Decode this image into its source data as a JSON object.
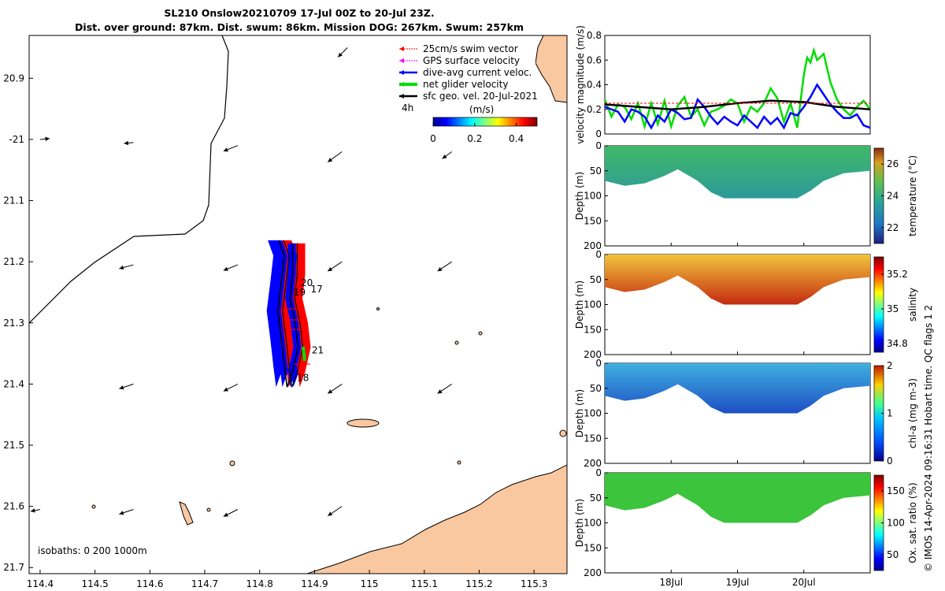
{
  "title_line1": "SL210 Onslow20210709 17-Jul 00Z to 20-Jul 23Z.",
  "title_line2": "Dist. over ground: 87km. Dist. swum: 86km. Mission DOG: 267km. Swum: 257km",
  "side_note": "© IMOS 14-Apr-2024 09:16:31 Hobart time. QC flags 1  2",
  "colors": {
    "land": "#fac8a0",
    "swim_vector": "#ff0000",
    "gps_velocity": "#ff00ff",
    "dive_avg": "#0000ff",
    "net_glider": "#00dd00",
    "geostrophic": "#000000",
    "velocity_swim_line": "#ff0000"
  },
  "chart_data": [
    {
      "type": "map",
      "name": "glider-track-map",
      "xlim": [
        114.38,
        115.36
      ],
      "ylim": [
        -21.71,
        -20.83
      ],
      "x_ticks": [
        114.4,
        114.5,
        114.6,
        114.7,
        114.8,
        114.9,
        115,
        115.1,
        115.2,
        115.3
      ],
      "x_tick_labels": [
        "114.4",
        "114.5",
        "114.6",
        "114.7",
        "114.8",
        "114.9",
        "115",
        "115.1",
        "115.2",
        "115.3"
      ],
      "y_ticks": [
        -20.9,
        -21,
        -21.1,
        -21.2,
        -21.3,
        -21.4,
        -21.5,
        -21.6,
        -21.7
      ],
      "y_tick_labels": [
        "20.9",
        "-21",
        "21.1",
        "21.2",
        "21.3",
        "21.4",
        "21.5",
        "21.6",
        "21.7"
      ],
      "legend": [
        {
          "label": "25cm/s swim vector",
          "color": "#ff0000"
        },
        {
          "label": "GPS surface velocity",
          "color": "#ff00ff"
        },
        {
          "label": "dive-avg current veloc.",
          "color": "#0000ff"
        },
        {
          "label": "net glider velocity",
          "color": "#00dd00"
        },
        {
          "label": "sfc geo. vel. 20-Jul-2021",
          "color": "#000000"
        }
      ],
      "legend_note": "4h",
      "colorbar": {
        "label": "(m/s)",
        "range": [
          0,
          0.5
        ],
        "ticks": [
          "0",
          "0.2",
          "0.4"
        ]
      },
      "isobaths_label": "isobaths: 0   200  1000m",
      "day_labels": [
        {
          "text": "20",
          "lon": 114.875,
          "lat": -21.24
        },
        {
          "text": "17",
          "lon": 114.893,
          "lat": -21.25
        },
        {
          "text": "19",
          "lon": 114.862,
          "lat": -21.255
        },
        {
          "text": "21",
          "lon": 114.895,
          "lat": -21.35
        },
        {
          "text": "18",
          "lon": 114.868,
          "lat": -21.395
        }
      ],
      "track": [
        {
          "lon": 114.835,
          "lat": -21.165
        },
        {
          "lon": 114.845,
          "lat": -21.19
        },
        {
          "lon": 114.84,
          "lat": -21.23
        },
        {
          "lon": 114.833,
          "lat": -21.28
        },
        {
          "lon": 114.84,
          "lat": -21.33
        },
        {
          "lon": 114.845,
          "lat": -21.37
        },
        {
          "lon": 114.85,
          "lat": -21.405
        },
        {
          "lon": 114.86,
          "lat": -21.38
        },
        {
          "lon": 114.87,
          "lat": -21.34
        },
        {
          "lon": 114.865,
          "lat": -21.3
        },
        {
          "lon": 114.855,
          "lat": -21.26
        },
        {
          "lon": 114.86,
          "lat": -21.22
        },
        {
          "lon": 114.86,
          "lat": -21.17
        }
      ],
      "geostrophic_vectors": [
        {
          "lon": 114.4,
          "lat": -21.0,
          "u": 0.02,
          "v": -0.002
        },
        {
          "lon": 114.57,
          "lat": -21.005,
          "u": -0.02,
          "v": 0.002
        },
        {
          "lon": 114.76,
          "lat": -21.01,
          "u": -0.03,
          "v": 0.012
        },
        {
          "lon": 114.95,
          "lat": -21.02,
          "u": -0.03,
          "v": 0.022
        },
        {
          "lon": 115.15,
          "lat": -21.02,
          "u": -0.02,
          "v": 0.015
        },
        {
          "lon": 114.78,
          "lat": -20.82,
          "u": -0.02,
          "v": 0.008
        },
        {
          "lon": 114.96,
          "lat": -20.85,
          "u": -0.02,
          "v": 0.02
        },
        {
          "lon": 115.15,
          "lat": -20.85,
          "u": -0.03,
          "v": 0.02
        },
        {
          "lon": 114.57,
          "lat": -21.205,
          "u": -0.03,
          "v": 0.008
        },
        {
          "lon": 114.76,
          "lat": -21.205,
          "u": -0.03,
          "v": 0.012
        },
        {
          "lon": 114.95,
          "lat": -21.2,
          "u": -0.03,
          "v": 0.02
        },
        {
          "lon": 115.15,
          "lat": -21.2,
          "u": -0.03,
          "v": 0.02
        },
        {
          "lon": 114.57,
          "lat": -21.4,
          "u": -0.03,
          "v": 0.01
        },
        {
          "lon": 114.76,
          "lat": -21.4,
          "u": -0.03,
          "v": 0.015
        },
        {
          "lon": 114.95,
          "lat": -21.4,
          "u": -0.03,
          "v": 0.02
        },
        {
          "lon": 115.15,
          "lat": -21.4,
          "u": -0.03,
          "v": 0.02
        },
        {
          "lon": 114.4,
          "lat": -21.605,
          "u": -0.02,
          "v": 0.004
        },
        {
          "lon": 114.57,
          "lat": -21.605,
          "u": -0.03,
          "v": 0.01
        },
        {
          "lon": 114.76,
          "lat": -21.605,
          "u": -0.03,
          "v": 0.015
        },
        {
          "lon": 114.95,
          "lat": -21.6,
          "u": -0.03,
          "v": 0.02
        }
      ]
    },
    {
      "type": "line",
      "name": "velocity-magnitude",
      "ylabel": "velocity magnitude (m/s)",
      "xlim": [
        17.0,
        21.0
      ],
      "ylim": [
        0,
        0.8
      ],
      "y_ticks": [
        0,
        0.2,
        0.4,
        0.6,
        0.8
      ],
      "series": [
        {
          "color": "#00dd00",
          "x": [
            17.0,
            17.1,
            17.2,
            17.3,
            17.4,
            17.5,
            17.6,
            17.7,
            17.8,
            17.9,
            18.0,
            18.1,
            18.2,
            18.3,
            18.4,
            18.5,
            18.6,
            18.7,
            18.8,
            18.9,
            19.0,
            19.1,
            19.2,
            19.3,
            19.4,
            19.5,
            19.6,
            19.7,
            19.8,
            19.9,
            20.0,
            20.05,
            20.1,
            20.15,
            20.2,
            20.3,
            20.4,
            20.5,
            20.6,
            20.7,
            20.8,
            20.9,
            21.0
          ],
          "y": [
            0.28,
            0.14,
            0.24,
            0.22,
            0.12,
            0.25,
            0.06,
            0.25,
            0.08,
            0.27,
            0.06,
            0.23,
            0.3,
            0.14,
            0.2,
            0.07,
            0.18,
            0.2,
            0.23,
            0.28,
            0.25,
            0.1,
            0.22,
            0.18,
            0.25,
            0.37,
            0.29,
            0.1,
            0.25,
            0.05,
            0.48,
            0.62,
            0.58,
            0.68,
            0.6,
            0.65,
            0.42,
            0.28,
            0.2,
            0.15,
            0.22,
            0.27,
            0.2
          ]
        },
        {
          "color": "#0000ff",
          "x": [
            17.0,
            17.1,
            17.2,
            17.3,
            17.4,
            17.5,
            17.6,
            17.7,
            17.8,
            17.9,
            18.0,
            18.1,
            18.2,
            18.3,
            18.4,
            18.5,
            18.6,
            18.7,
            18.8,
            18.9,
            19.0,
            19.1,
            19.2,
            19.3,
            19.4,
            19.5,
            19.6,
            19.7,
            19.8,
            19.9,
            20.0,
            20.1,
            20.2,
            20.3,
            20.4,
            20.5,
            20.6,
            20.7,
            20.8,
            20.9,
            21.0
          ],
          "y": [
            0.22,
            0.2,
            0.18,
            0.1,
            0.2,
            0.18,
            0.14,
            0.05,
            0.15,
            0.1,
            0.2,
            0.17,
            0.12,
            0.13,
            0.28,
            0.22,
            0.14,
            0.08,
            0.14,
            0.1,
            0.07,
            0.15,
            0.1,
            0.05,
            0.14,
            0.08,
            0.13,
            0.05,
            0.17,
            0.15,
            0.22,
            0.3,
            0.4,
            0.32,
            0.24,
            0.18,
            0.13,
            0.13,
            0.16,
            0.07,
            0.05
          ]
        },
        {
          "color": "#000000",
          "x": [
            17.0,
            17.5,
            18.0,
            18.5,
            19.0,
            19.5,
            20.0,
            20.5,
            21.0
          ],
          "y": [
            0.24,
            0.22,
            0.2,
            0.22,
            0.25,
            0.27,
            0.26,
            0.22,
            0.2
          ]
        },
        {
          "color": "#ff0000",
          "x": [
            17.0,
            21.0
          ],
          "y": [
            0.25,
            0.25
          ],
          "dashed": true
        }
      ]
    },
    {
      "type": "heatmap",
      "name": "temperature-section",
      "ylabel": "Depth (m)",
      "colorbar_label": "temperature (°C)",
      "colorbar_ticks": [
        "22",
        "24",
        "26"
      ],
      "range": [
        21,
        27
      ]
    },
    {
      "type": "heatmap",
      "name": "salinity-section",
      "ylabel": "Depth (m)",
      "colorbar_label": "salinity",
      "colorbar_ticks": [
        "34.8",
        "35",
        "35.2"
      ],
      "range": [
        34.75,
        35.3
      ]
    },
    {
      "type": "heatmap",
      "name": "chla-section",
      "ylabel": "Depth (m)",
      "colorbar_label": "chl-a (mg m-3)",
      "colorbar_ticks": [
        "0",
        "1",
        "2"
      ],
      "range": [
        0,
        2
      ]
    },
    {
      "type": "heatmap",
      "name": "oxygen-section",
      "ylabel": "Depth (m)",
      "colorbar_label": "Ox. sat. ratio (%)",
      "colorbar_ticks": [
        "50",
        "100",
        "150"
      ],
      "range": [
        25,
        175
      ]
    }
  ],
  "section_depth_ticks": [
    "0",
    "50",
    "100",
    "150",
    "200"
  ],
  "time_ticks": [
    {
      "label": "18Jul",
      "day": 18.0
    },
    {
      "label": "19Jul",
      "day": 19.0
    },
    {
      "label": "20Jul",
      "day": 20.0
    }
  ]
}
